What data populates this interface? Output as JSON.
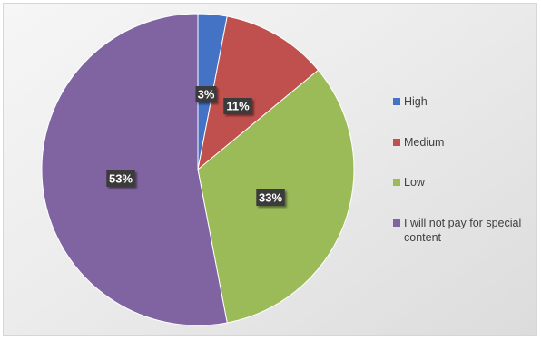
{
  "chart_data": {
    "type": "pie",
    "slices": [
      {
        "label": "High",
        "value": 3,
        "display": "3%",
        "color": "#4472c4"
      },
      {
        "label": "Medium",
        "value": 11,
        "display": "11%",
        "color": "#c0504d"
      },
      {
        "label": "Low",
        "value": 33,
        "display": "33%",
        "color": "#9bbb59"
      },
      {
        "label": "I will not pay for special content",
        "value": 53,
        "display": "53%",
        "color": "#8064a2"
      }
    ],
    "legend_position": "right",
    "data_label_style": "dark box with white bold text"
  }
}
